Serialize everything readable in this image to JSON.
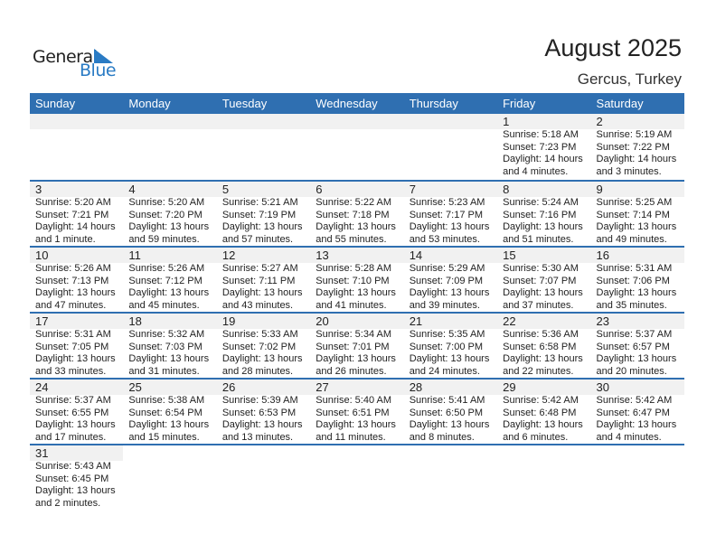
{
  "logo": {
    "text1": "General",
    "text2": "Blue",
    "accent": "#2a7bc4"
  },
  "title": "August 2025",
  "location": "Gercus, Turkey",
  "header_color": "#2f6fb1",
  "weekdays": [
    "Sunday",
    "Monday",
    "Tuesday",
    "Wednesday",
    "Thursday",
    "Friday",
    "Saturday"
  ],
  "weeks": [
    [
      null,
      null,
      null,
      null,
      null,
      {
        "day": "1",
        "sunrise": "Sunrise: 5:18 AM",
        "sunset": "Sunset: 7:23 PM",
        "daylight1": "Daylight: 14 hours",
        "daylight2": "and 4 minutes."
      },
      {
        "day": "2",
        "sunrise": "Sunrise: 5:19 AM",
        "sunset": "Sunset: 7:22 PM",
        "daylight1": "Daylight: 14 hours",
        "daylight2": "and 3 minutes."
      }
    ],
    [
      {
        "day": "3",
        "sunrise": "Sunrise: 5:20 AM",
        "sunset": "Sunset: 7:21 PM",
        "daylight1": "Daylight: 14 hours",
        "daylight2": "and 1 minute."
      },
      {
        "day": "4",
        "sunrise": "Sunrise: 5:20 AM",
        "sunset": "Sunset: 7:20 PM",
        "daylight1": "Daylight: 13 hours",
        "daylight2": "and 59 minutes."
      },
      {
        "day": "5",
        "sunrise": "Sunrise: 5:21 AM",
        "sunset": "Sunset: 7:19 PM",
        "daylight1": "Daylight: 13 hours",
        "daylight2": "and 57 minutes."
      },
      {
        "day": "6",
        "sunrise": "Sunrise: 5:22 AM",
        "sunset": "Sunset: 7:18 PM",
        "daylight1": "Daylight: 13 hours",
        "daylight2": "and 55 minutes."
      },
      {
        "day": "7",
        "sunrise": "Sunrise: 5:23 AM",
        "sunset": "Sunset: 7:17 PM",
        "daylight1": "Daylight: 13 hours",
        "daylight2": "and 53 minutes."
      },
      {
        "day": "8",
        "sunrise": "Sunrise: 5:24 AM",
        "sunset": "Sunset: 7:16 PM",
        "daylight1": "Daylight: 13 hours",
        "daylight2": "and 51 minutes."
      },
      {
        "day": "9",
        "sunrise": "Sunrise: 5:25 AM",
        "sunset": "Sunset: 7:14 PM",
        "daylight1": "Daylight: 13 hours",
        "daylight2": "and 49 minutes."
      }
    ],
    [
      {
        "day": "10",
        "sunrise": "Sunrise: 5:26 AM",
        "sunset": "Sunset: 7:13 PM",
        "daylight1": "Daylight: 13 hours",
        "daylight2": "and 47 minutes."
      },
      {
        "day": "11",
        "sunrise": "Sunrise: 5:26 AM",
        "sunset": "Sunset: 7:12 PM",
        "daylight1": "Daylight: 13 hours",
        "daylight2": "and 45 minutes."
      },
      {
        "day": "12",
        "sunrise": "Sunrise: 5:27 AM",
        "sunset": "Sunset: 7:11 PM",
        "daylight1": "Daylight: 13 hours",
        "daylight2": "and 43 minutes."
      },
      {
        "day": "13",
        "sunrise": "Sunrise: 5:28 AM",
        "sunset": "Sunset: 7:10 PM",
        "daylight1": "Daylight: 13 hours",
        "daylight2": "and 41 minutes."
      },
      {
        "day": "14",
        "sunrise": "Sunrise: 5:29 AM",
        "sunset": "Sunset: 7:09 PM",
        "daylight1": "Daylight: 13 hours",
        "daylight2": "and 39 minutes."
      },
      {
        "day": "15",
        "sunrise": "Sunrise: 5:30 AM",
        "sunset": "Sunset: 7:07 PM",
        "daylight1": "Daylight: 13 hours",
        "daylight2": "and 37 minutes."
      },
      {
        "day": "16",
        "sunrise": "Sunrise: 5:31 AM",
        "sunset": "Sunset: 7:06 PM",
        "daylight1": "Daylight: 13 hours",
        "daylight2": "and 35 minutes."
      }
    ],
    [
      {
        "day": "17",
        "sunrise": "Sunrise: 5:31 AM",
        "sunset": "Sunset: 7:05 PM",
        "daylight1": "Daylight: 13 hours",
        "daylight2": "and 33 minutes."
      },
      {
        "day": "18",
        "sunrise": "Sunrise: 5:32 AM",
        "sunset": "Sunset: 7:03 PM",
        "daylight1": "Daylight: 13 hours",
        "daylight2": "and 31 minutes."
      },
      {
        "day": "19",
        "sunrise": "Sunrise: 5:33 AM",
        "sunset": "Sunset: 7:02 PM",
        "daylight1": "Daylight: 13 hours",
        "daylight2": "and 28 minutes."
      },
      {
        "day": "20",
        "sunrise": "Sunrise: 5:34 AM",
        "sunset": "Sunset: 7:01 PM",
        "daylight1": "Daylight: 13 hours",
        "daylight2": "and 26 minutes."
      },
      {
        "day": "21",
        "sunrise": "Sunrise: 5:35 AM",
        "sunset": "Sunset: 7:00 PM",
        "daylight1": "Daylight: 13 hours",
        "daylight2": "and 24 minutes."
      },
      {
        "day": "22",
        "sunrise": "Sunrise: 5:36 AM",
        "sunset": "Sunset: 6:58 PM",
        "daylight1": "Daylight: 13 hours",
        "daylight2": "and 22 minutes."
      },
      {
        "day": "23",
        "sunrise": "Sunrise: 5:37 AM",
        "sunset": "Sunset: 6:57 PM",
        "daylight1": "Daylight: 13 hours",
        "daylight2": "and 20 minutes."
      }
    ],
    [
      {
        "day": "24",
        "sunrise": "Sunrise: 5:37 AM",
        "sunset": "Sunset: 6:55 PM",
        "daylight1": "Daylight: 13 hours",
        "daylight2": "and 17 minutes."
      },
      {
        "day": "25",
        "sunrise": "Sunrise: 5:38 AM",
        "sunset": "Sunset: 6:54 PM",
        "daylight1": "Daylight: 13 hours",
        "daylight2": "and 15 minutes."
      },
      {
        "day": "26",
        "sunrise": "Sunrise: 5:39 AM",
        "sunset": "Sunset: 6:53 PM",
        "daylight1": "Daylight: 13 hours",
        "daylight2": "and 13 minutes."
      },
      {
        "day": "27",
        "sunrise": "Sunrise: 5:40 AM",
        "sunset": "Sunset: 6:51 PM",
        "daylight1": "Daylight: 13 hours",
        "daylight2": "and 11 minutes."
      },
      {
        "day": "28",
        "sunrise": "Sunrise: 5:41 AM",
        "sunset": "Sunset: 6:50 PM",
        "daylight1": "Daylight: 13 hours",
        "daylight2": "and 8 minutes."
      },
      {
        "day": "29",
        "sunrise": "Sunrise: 5:42 AM",
        "sunset": "Sunset: 6:48 PM",
        "daylight1": "Daylight: 13 hours",
        "daylight2": "and 6 minutes."
      },
      {
        "day": "30",
        "sunrise": "Sunrise: 5:42 AM",
        "sunset": "Sunset: 6:47 PM",
        "daylight1": "Daylight: 13 hours",
        "daylight2": "and 4 minutes."
      }
    ],
    [
      {
        "day": "31",
        "sunrise": "Sunrise: 5:43 AM",
        "sunset": "Sunset: 6:45 PM",
        "daylight1": "Daylight: 13 hours",
        "daylight2": "and 2 minutes."
      }
    ]
  ]
}
